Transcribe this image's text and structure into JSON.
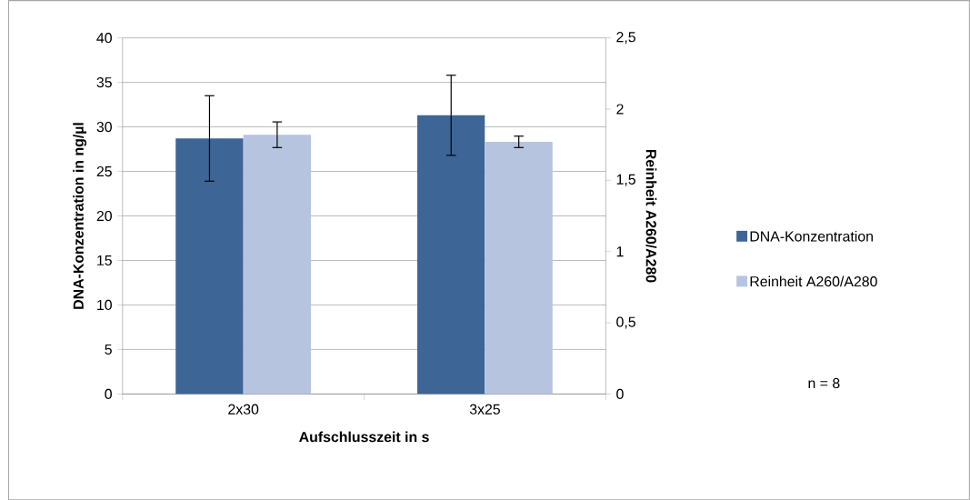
{
  "chart_data": {
    "type": "bar",
    "categories": [
      "2x30",
      "3x25"
    ],
    "xlabel": "Aufschlusszeit in s",
    "ylabel": "DNA-Konzentration in ng/µl",
    "y2label": "Reinheit A260/A280",
    "series": [
      {
        "name": "DNA-Konzentration",
        "color": "#3d6596",
        "values": [
          28.7,
          31.3
        ],
        "errors": [
          4.8,
          4.5
        ]
      },
      {
        "name": "Reinheit A260/A280",
        "color": "#b7c4e0",
        "values": [
          1.82,
          1.77
        ],
        "errors": [
          0.09,
          0.04
        ],
        "axis": "y2"
      }
    ],
    "ylim": [
      0,
      40
    ],
    "yticks": [
      0,
      5,
      10,
      15,
      20,
      25,
      30,
      35,
      40
    ],
    "y2lim": [
      0,
      2.5
    ],
    "y2ticks": [
      0,
      {
        "value": 0.5,
        "label": "0,5"
      },
      1,
      {
        "value": 1.5,
        "label": "1,5"
      },
      2,
      {
        "value": 2.5,
        "label": "2,5"
      }
    ],
    "grid": "y",
    "legend": "right",
    "annotations": [
      "n = 8"
    ]
  }
}
